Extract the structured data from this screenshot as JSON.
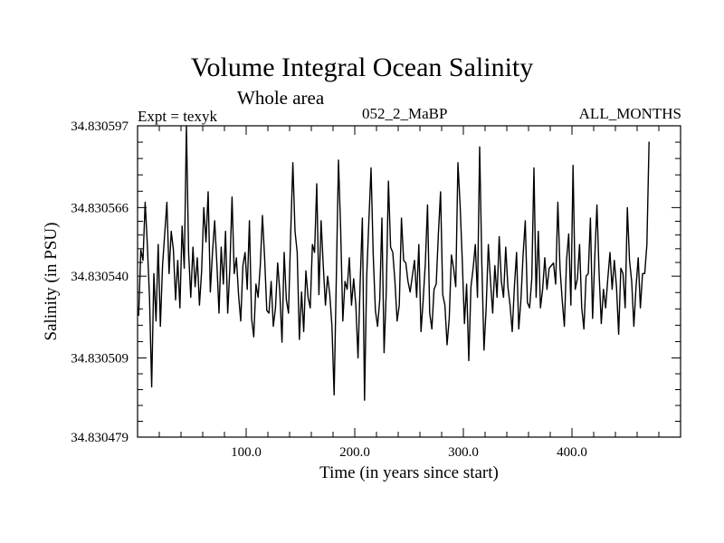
{
  "header": {
    "title": "Volume Integral Ocean Salinity",
    "subtitle": "Whole area",
    "expt": "Expt = texyk",
    "run": "052_2_MaBP",
    "months": "ALL_MONTHS"
  },
  "chart_data": {
    "type": "line",
    "title": "Volume Integral Ocean Salinity",
    "subtitle": "Whole area",
    "xlabel": "Time (in years since start)",
    "ylabel": "Salinity (in PSU)",
    "xlim": [
      0,
      500
    ],
    "ylim": [
      34.830479,
      34.830597
    ],
    "x_ticks": [
      100,
      200,
      300,
      400
    ],
    "x_tick_labels": [
      "100.0",
      "200.0",
      "300.0",
      "400.0"
    ],
    "y_ticks": [
      34.830479,
      34.830509,
      34.83054,
      34.830566,
      34.830597
    ],
    "y_tick_labels": [
      "34.830479",
      "34.830509",
      "34.830540",
      "34.830566",
      "34.830597"
    ],
    "grid": false,
    "line_color": "#000000",
    "series": [
      {
        "x_start": 1,
        "x_step": 2,
        "values": [
          34.830525,
          34.83055,
          34.830546,
          34.830568,
          34.830552,
          34.830532,
          34.830498,
          34.830541,
          34.830523,
          34.830552,
          34.830521,
          34.830544,
          34.830556,
          34.830568,
          34.830541,
          34.830557,
          34.83055,
          34.830531,
          34.830546,
          34.830528,
          34.830559,
          34.830543,
          34.830597,
          34.830549,
          34.830532,
          34.830551,
          34.830536,
          34.830547,
          34.830529,
          34.830542,
          34.830566,
          34.830553,
          34.830572,
          34.830534,
          34.830549,
          34.830561,
          34.830545,
          34.830526,
          34.830551,
          34.830537,
          34.830557,
          34.830526,
          34.830543,
          34.83057,
          34.830541,
          34.830547,
          34.830533,
          34.830523,
          34.830544,
          34.830549,
          34.830535,
          34.830561,
          34.830524,
          34.830517,
          34.830537,
          34.830532,
          34.830544,
          34.830563,
          34.830547,
          34.830527,
          34.830526,
          34.830538,
          34.830521,
          34.830528,
          34.830545,
          34.830534,
          34.830515,
          34.830549,
          34.830531,
          34.830526,
          34.830556,
          34.830583,
          34.830557,
          34.830549,
          34.830516,
          34.830534,
          34.830519,
          34.830542,
          34.830532,
          34.830528,
          34.830552,
          34.830549,
          34.830575,
          34.830533,
          34.830561,
          34.830544,
          34.830529,
          34.83054,
          34.830533,
          34.830521,
          34.830495,
          34.830539,
          34.830584,
          34.830558,
          34.830523,
          34.830538,
          34.830535,
          34.830547,
          34.830529,
          34.830539,
          34.830529,
          34.830509,
          34.830538,
          34.830562,
          34.830493,
          34.83054,
          34.830561,
          34.830581,
          34.830548,
          34.830527,
          34.830521,
          34.830531,
          34.830562,
          34.830511,
          34.830534,
          34.830576,
          34.830551,
          34.830549,
          34.830538,
          34.830523,
          34.830529,
          34.830562,
          34.830546,
          34.830545,
          34.830538,
          34.830534,
          34.83054,
          34.830546,
          34.830532,
          34.830552,
          34.830519,
          34.830531,
          34.830545,
          34.830567,
          34.830526,
          34.83052,
          34.830535,
          34.830537,
          34.830556,
          34.830572,
          34.830533,
          34.830529,
          34.830514,
          34.830524,
          34.830548,
          34.830543,
          34.830536,
          34.830583,
          34.830567,
          34.830546,
          34.830522,
          34.830537,
          34.830508,
          34.830536,
          34.830543,
          34.830552,
          34.830532,
          34.830589,
          34.830545,
          34.830512,
          34.830528,
          34.830552,
          34.830538,
          34.830526,
          34.830544,
          34.830532,
          34.830555,
          34.830538,
          34.830532,
          34.830551,
          34.830536,
          34.830529,
          34.830519,
          34.830536,
          34.830549,
          34.83052,
          34.830531,
          34.830548,
          34.830561,
          34.83053,
          34.830528,
          34.830539,
          34.830581,
          34.830532,
          34.830557,
          34.830528,
          34.830535,
          34.830547,
          34.830535,
          34.830543,
          34.830544,
          34.830545,
          34.830537,
          34.830568,
          34.830543,
          34.830531,
          34.830521,
          34.830546,
          34.830556,
          34.830529,
          34.830582,
          34.830535,
          34.830539,
          34.830552,
          34.830528,
          34.83052,
          34.83054,
          34.830541,
          34.830562,
          34.830524,
          34.830547,
          34.830567,
          34.830541,
          34.830522,
          34.830535,
          34.830528,
          34.830539,
          34.830549,
          34.830535,
          34.830546,
          34.830536,
          34.830518,
          34.830543,
          34.830541,
          34.830528,
          34.830566,
          34.830546,
          34.830538,
          34.830521,
          34.830536,
          34.830547,
          34.830528,
          34.830541,
          34.830541,
          34.830552,
          34.830591
        ]
      }
    ]
  }
}
